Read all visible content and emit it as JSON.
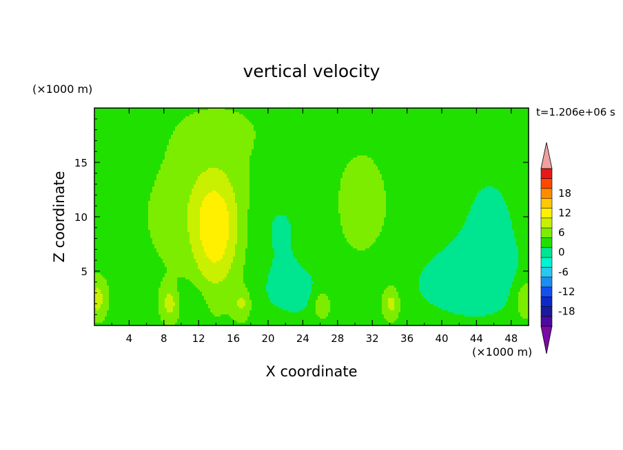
{
  "chart_data": {
    "type": "heatmap",
    "title": "vertical velocity",
    "xlabel": "X coordinate",
    "ylabel": "Z coordinate",
    "x_unit": "(×1000 m)",
    "y_unit": "(×1000 m)",
    "time_label": "t=1.206e+06 s",
    "xlim": [
      0,
      50
    ],
    "ylim": [
      0,
      20
    ],
    "x_ticks": [
      4,
      8,
      12,
      16,
      20,
      24,
      28,
      32,
      36,
      40,
      44,
      48
    ],
    "y_ticks": [
      5,
      10,
      15
    ],
    "colorbar": {
      "levels": [
        -21,
        -18,
        -15,
        -12,
        -9,
        -6,
        -3,
        0,
        3,
        6,
        9,
        12,
        15,
        18,
        21
      ],
      "tick_labels": [
        18,
        12,
        6,
        0,
        -6,
        -12,
        -18
      ],
      "colors": [
        "#4b0aa0",
        "#1a1a9a",
        "#0f28c8",
        "#1450ee",
        "#1e8cf5",
        "#28c8f0",
        "#00f5d2",
        "#00e690",
        "#20e000",
        "#7ded00",
        "#c8f000",
        "#fff000",
        "#ffc800",
        "#ff8c00",
        "#ff4800",
        "#e61818"
      ],
      "under_color": "#7a0aa8",
      "over_color": "#f0a0a0"
    },
    "field": {
      "background": 1.5,
      "features": [
        {
          "x": 14,
          "z": 8,
          "sx": 1.8,
          "sz": 3.5,
          "a": 6.5
        },
        {
          "x": 13.5,
          "z": 11,
          "sx": 2.5,
          "sz": 3,
          "a": 3
        },
        {
          "x": 12.5,
          "z": 10,
          "sx": 8,
          "sz": 7,
          "a": 2
        },
        {
          "x": 31,
          "z": 11,
          "sx": 3.2,
          "sz": 5.5,
          "a": 2
        },
        {
          "x": 14.5,
          "z": 18,
          "sx": 4,
          "sz": 2,
          "a": 1.2
        },
        {
          "x": 21,
          "z": 9,
          "sx": 3,
          "sz": 3.5,
          "a": -2.8
        },
        {
          "x": 23,
          "z": 3,
          "sx": 3.5,
          "sz": 2,
          "a": -2.5
        },
        {
          "x": 11,
          "z": 2.5,
          "sx": 1.5,
          "sz": 1.2,
          "a": -2
        },
        {
          "x": 42,
          "z": 4,
          "sx": 5,
          "sz": 2.5,
          "a": -2.5
        },
        {
          "x": 45.5,
          "z": 9,
          "sx": 3,
          "sz": 5,
          "a": -2
        },
        {
          "x": 0.3,
          "z": 2.4,
          "sx": 0.8,
          "sz": 1.3,
          "a": 5.5
        },
        {
          "x": 8.7,
          "z": 2.0,
          "sx": 0.7,
          "sz": 1.1,
          "a": 5.5
        },
        {
          "x": 17,
          "z": 2.0,
          "sx": 0.7,
          "sz": 1.0,
          "a": 4.5
        },
        {
          "x": 26.2,
          "z": 1.9,
          "sx": 0.7,
          "sz": 1.0,
          "a": 5
        },
        {
          "x": 34.2,
          "z": 2.0,
          "sx": 0.7,
          "sz": 1.1,
          "a": 5.5
        },
        {
          "x": 49.6,
          "z": 2.4,
          "sx": 0.8,
          "sz": 1.3,
          "a": 5
        }
      ]
    }
  }
}
